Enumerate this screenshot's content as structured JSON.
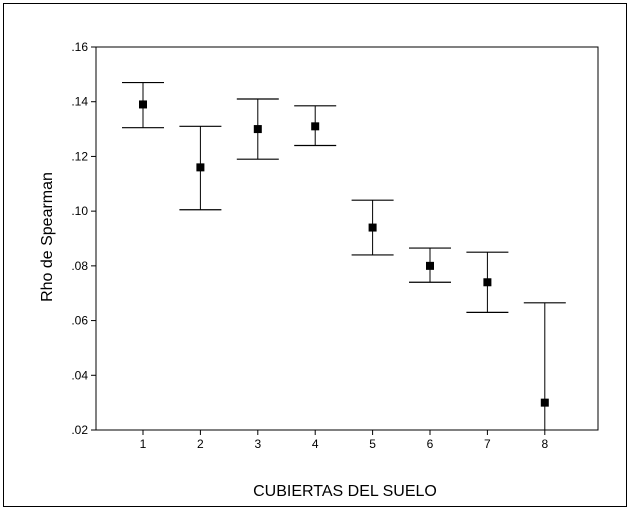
{
  "chart_data": {
    "type": "scatter",
    "chart_style": "error-bar",
    "xlabel": "CUBIERTAS DEL SUELO",
    "ylabel": "Rho de Spearman",
    "categories": [
      "1",
      "2",
      "3",
      "4",
      "5",
      "6",
      "7",
      "8"
    ],
    "values": [
      0.139,
      0.116,
      0.13,
      0.131,
      0.094,
      0.08,
      0.074,
      0.03
    ],
    "lower": [
      0.1305,
      0.1005,
      0.119,
      0.124,
      0.084,
      0.074,
      0.063,
      0.0
    ],
    "upper": [
      0.147,
      0.131,
      0.141,
      0.1385,
      0.104,
      0.0865,
      0.085,
      0.0665
    ],
    "ylim": [
      0.02,
      0.16
    ],
    "yticks": [
      0.02,
      0.04,
      0.06,
      0.08,
      0.1,
      0.12,
      0.14,
      0.16
    ],
    "ytick_labels": [
      ".02",
      ".04",
      ".06",
      ".08",
      ".10",
      ".12",
      ".14",
      ".16"
    ],
    "grid": false,
    "legend": "none",
    "colors": {
      "marker": "#000000",
      "line": "#000000",
      "frame": "#000000"
    }
  }
}
